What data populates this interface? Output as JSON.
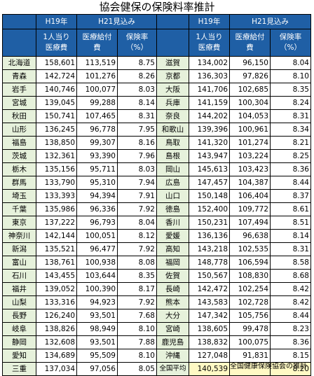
{
  "title": "協会健保の保険料率推計",
  "headers": {
    "h19": "H19年",
    "h21": "H21見込み",
    "per_capita": [
      "1人当り",
      "医療費"
    ],
    "benefit": [
      "医療給付",
      "費"
    ],
    "rate": [
      "保険率",
      "（%）"
    ]
  },
  "left": [
    {
      "pref": "北海道",
      "m": "158,601",
      "b": "113,519",
      "r": "8.75"
    },
    {
      "pref": "青森",
      "m": "142,724",
      "b": "101,276",
      "r": "8.26"
    },
    {
      "pref": "岩手",
      "m": "140,746",
      "b": "100,077",
      "r": "8.03"
    },
    {
      "pref": "宮城",
      "m": "139,045",
      "b": "99,288",
      "r": "8.14"
    },
    {
      "pref": "秋田",
      "m": "150,741",
      "b": "107,465",
      "r": "8.31"
    },
    {
      "pref": "山形",
      "m": "136,245",
      "b": "96,778",
      "r": "7.95"
    },
    {
      "pref": "福島",
      "m": "138,850",
      "b": "99,307",
      "r": "8.16"
    },
    {
      "pref": "茨城",
      "m": "132,361",
      "b": "93,390",
      "r": "7.96"
    },
    {
      "pref": "栃木",
      "m": "135,156",
      "b": "95,711",
      "r": "8.03"
    },
    {
      "pref": "群馬",
      "m": "133,790",
      "b": "95,310",
      "r": "7.94"
    },
    {
      "pref": "埼玉",
      "m": "133,393",
      "b": "94,394",
      "r": "7.91"
    },
    {
      "pref": "千葉",
      "m": "135,986",
      "b": "96,336",
      "r": "7.92"
    },
    {
      "pref": "東京",
      "m": "137,222",
      "b": "96,793",
      "r": "8.04"
    },
    {
      "pref": "神奈川",
      "m": "142,144",
      "b": "100,051",
      "r": "8.12"
    },
    {
      "pref": "新潟",
      "m": "135,521",
      "b": "96,477",
      "r": "7.92"
    },
    {
      "pref": "富山",
      "m": "138,761",
      "b": "100,938",
      "r": "8.08"
    },
    {
      "pref": "石川",
      "m": "143,455",
      "b": "103,644",
      "r": "8.35"
    },
    {
      "pref": "福井",
      "m": "139,052",
      "b": "100,390",
      "r": "8.17"
    },
    {
      "pref": "山梨",
      "m": "133,316",
      "b": "94,923",
      "r": "7.92"
    },
    {
      "pref": "長野",
      "m": "126,240",
      "b": "93,501",
      "r": "7.68"
    },
    {
      "pref": "岐阜",
      "m": "138,826",
      "b": "98,949",
      "r": "8.10"
    },
    {
      "pref": "静岡",
      "m": "132,608",
      "b": "93,501",
      "r": "7.88"
    },
    {
      "pref": "愛知",
      "m": "134,689",
      "b": "95,509",
      "r": "8.10"
    },
    {
      "pref": "三重",
      "m": "137,034",
      "b": "97,056",
      "r": "8.05"
    }
  ],
  "right": [
    {
      "pref": "滋賀",
      "m": "134,002",
      "b": "96,150",
      "r": "8.04"
    },
    {
      "pref": "京都",
      "m": "136,303",
      "b": "97,826",
      "r": "8.10"
    },
    {
      "pref": "大阪",
      "m": "141,706",
      "b": "102,685",
      "r": "8.35"
    },
    {
      "pref": "兵庫",
      "m": "141,159",
      "b": "100,304",
      "r": "8.24"
    },
    {
      "pref": "奈良",
      "m": "144,202",
      "b": "104,053",
      "r": "8.31"
    },
    {
      "pref": "和歌山",
      "m": "139,396",
      "b": "100,961",
      "r": "8.34"
    },
    {
      "pref": "鳥取",
      "m": "141,320",
      "b": "101,274",
      "r": "8.21"
    },
    {
      "pref": "島根",
      "m": "143,947",
      "b": "103,224",
      "r": "8.25"
    },
    {
      "pref": "岡山",
      "m": "145,613",
      "b": "103,423",
      "r": "8.36"
    },
    {
      "pref": "広島",
      "m": "147,457",
      "b": "104,387",
      "r": "8.44"
    },
    {
      "pref": "山口",
      "m": "150,148",
      "b": "106,404",
      "r": "8.37"
    },
    {
      "pref": "徳島",
      "m": "152,400",
      "b": "109,772",
      "r": "8.61"
    },
    {
      "pref": "香川",
      "m": "150,231",
      "b": "107,494",
      "r": "8.51"
    },
    {
      "pref": "愛媛",
      "m": "136,136",
      "b": "96,638",
      "r": "8.14"
    },
    {
      "pref": "高知",
      "m": "143,218",
      "b": "102,535",
      "r": "8.31"
    },
    {
      "pref": "福岡",
      "m": "148,778",
      "b": "106,594",
      "r": "8.58"
    },
    {
      "pref": "佐賀",
      "m": "150,567",
      "b": "108,830",
      "r": "8.68"
    },
    {
      "pref": "長崎",
      "m": "142,472",
      "b": "102,254",
      "r": "8.42"
    },
    {
      "pref": "熊本",
      "m": "143,583",
      "b": "102,728",
      "r": "8.42"
    },
    {
      "pref": "大分",
      "m": "147,342",
      "b": "105,756",
      "r": "8.44"
    },
    {
      "pref": "宮崎",
      "m": "138,605",
      "b": "99,478",
      "r": "8.23"
    },
    {
      "pref": "鹿児島",
      "m": "138,832",
      "b": "100,075",
      "r": "8.36"
    },
    {
      "pref": "沖縄",
      "m": "127,048",
      "b": "91,831",
      "r": "8.15"
    }
  ],
  "total": {
    "pref": "全国平均",
    "m": "140,539",
    "b": "",
    "r": "8.20"
  },
  "footer": "全国健康保険協会の推計"
}
